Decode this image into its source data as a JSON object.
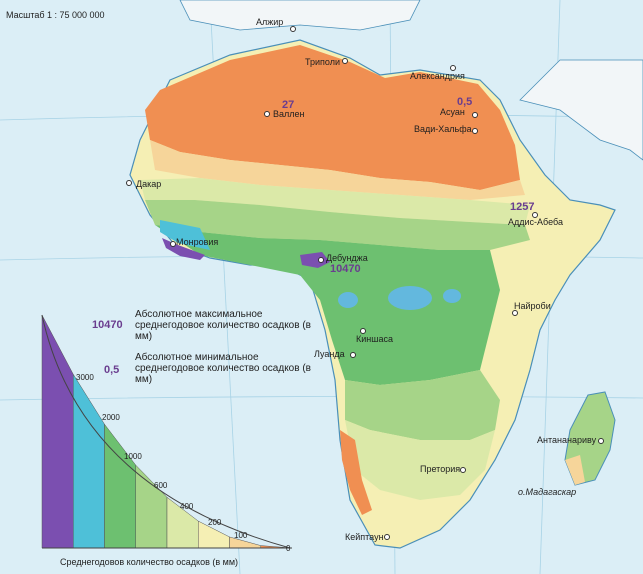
{
  "map": {
    "scale": "Масштаб 1 : 75 000 000",
    "cities": [
      {
        "name": "Алжир"
      },
      {
        "name": "Триполи"
      },
      {
        "name": "Александрия"
      },
      {
        "name": "Асуан"
      },
      {
        "name": "Вади-Хальфа"
      },
      {
        "name": "Валлен"
      },
      {
        "name": "Дакар"
      },
      {
        "name": "Монровия"
      },
      {
        "name": "Дебунджа"
      },
      {
        "name": "Аддис-Абеба"
      },
      {
        "name": "Найроби"
      },
      {
        "name": "Киншаса"
      },
      {
        "name": "Луанда"
      },
      {
        "name": "Претория"
      },
      {
        "name": "Кейптаун"
      },
      {
        "name": "Антананариву"
      },
      {
        "name": "о.Мадагаскар"
      }
    ],
    "values": {
      "vallen_min": "27",
      "aswan_min": "0,5",
      "addis_max": "1257",
      "debundscha_max": "10470"
    }
  },
  "legend": {
    "max_sample": "10470",
    "max_text": "Абсолютное максимальное среднегодовое количество осадков (в мм)",
    "min_sample": "0,5",
    "min_text": "Абсолютное минимальное среднегодовое количество осадков (в мм)",
    "ticks": [
      "3000",
      "2000",
      "1000",
      "600",
      "400",
      "200",
      "100",
      "0"
    ],
    "caption": "Среднегодовов количество осадков (в мм)",
    "colors": [
      "#7b4fb0",
      "#4ec0d8",
      "#6dc070",
      "#a6d488",
      "#dbe9a8",
      "#f5efb4",
      "#f6d59a",
      "#f08f52"
    ]
  }
}
